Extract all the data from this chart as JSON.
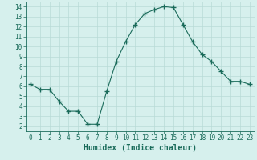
{
  "x": [
    0,
    1,
    2,
    3,
    4,
    5,
    6,
    7,
    8,
    9,
    10,
    11,
    12,
    13,
    14,
    15,
    16,
    17,
    18,
    19,
    20,
    21,
    22,
    23
  ],
  "y": [
    6.2,
    5.7,
    5.7,
    4.5,
    3.5,
    3.5,
    2.2,
    2.2,
    5.5,
    8.5,
    10.5,
    12.2,
    13.3,
    13.7,
    14.0,
    13.9,
    12.2,
    10.5,
    9.2,
    8.5,
    7.5,
    6.5,
    6.5,
    6.2
  ],
  "line_color": "#1a6b5a",
  "marker": "+",
  "marker_size": 4,
  "marker_lw": 1.0,
  "bg_color": "#d6f0ed",
  "grid_color": "#b8dbd7",
  "xlabel": "Humidex (Indice chaleur)",
  "xlim": [
    -0.5,
    23.5
  ],
  "ylim": [
    1.5,
    14.5
  ],
  "xticks": [
    0,
    1,
    2,
    3,
    4,
    5,
    6,
    7,
    8,
    9,
    10,
    11,
    12,
    13,
    14,
    15,
    16,
    17,
    18,
    19,
    20,
    21,
    22,
    23
  ],
  "yticks": [
    2,
    3,
    4,
    5,
    6,
    7,
    8,
    9,
    10,
    11,
    12,
    13,
    14
  ],
  "tick_color": "#1a6b5a",
  "tick_fontsize": 5.5,
  "xlabel_fontsize": 7.0,
  "line_width": 0.8
}
